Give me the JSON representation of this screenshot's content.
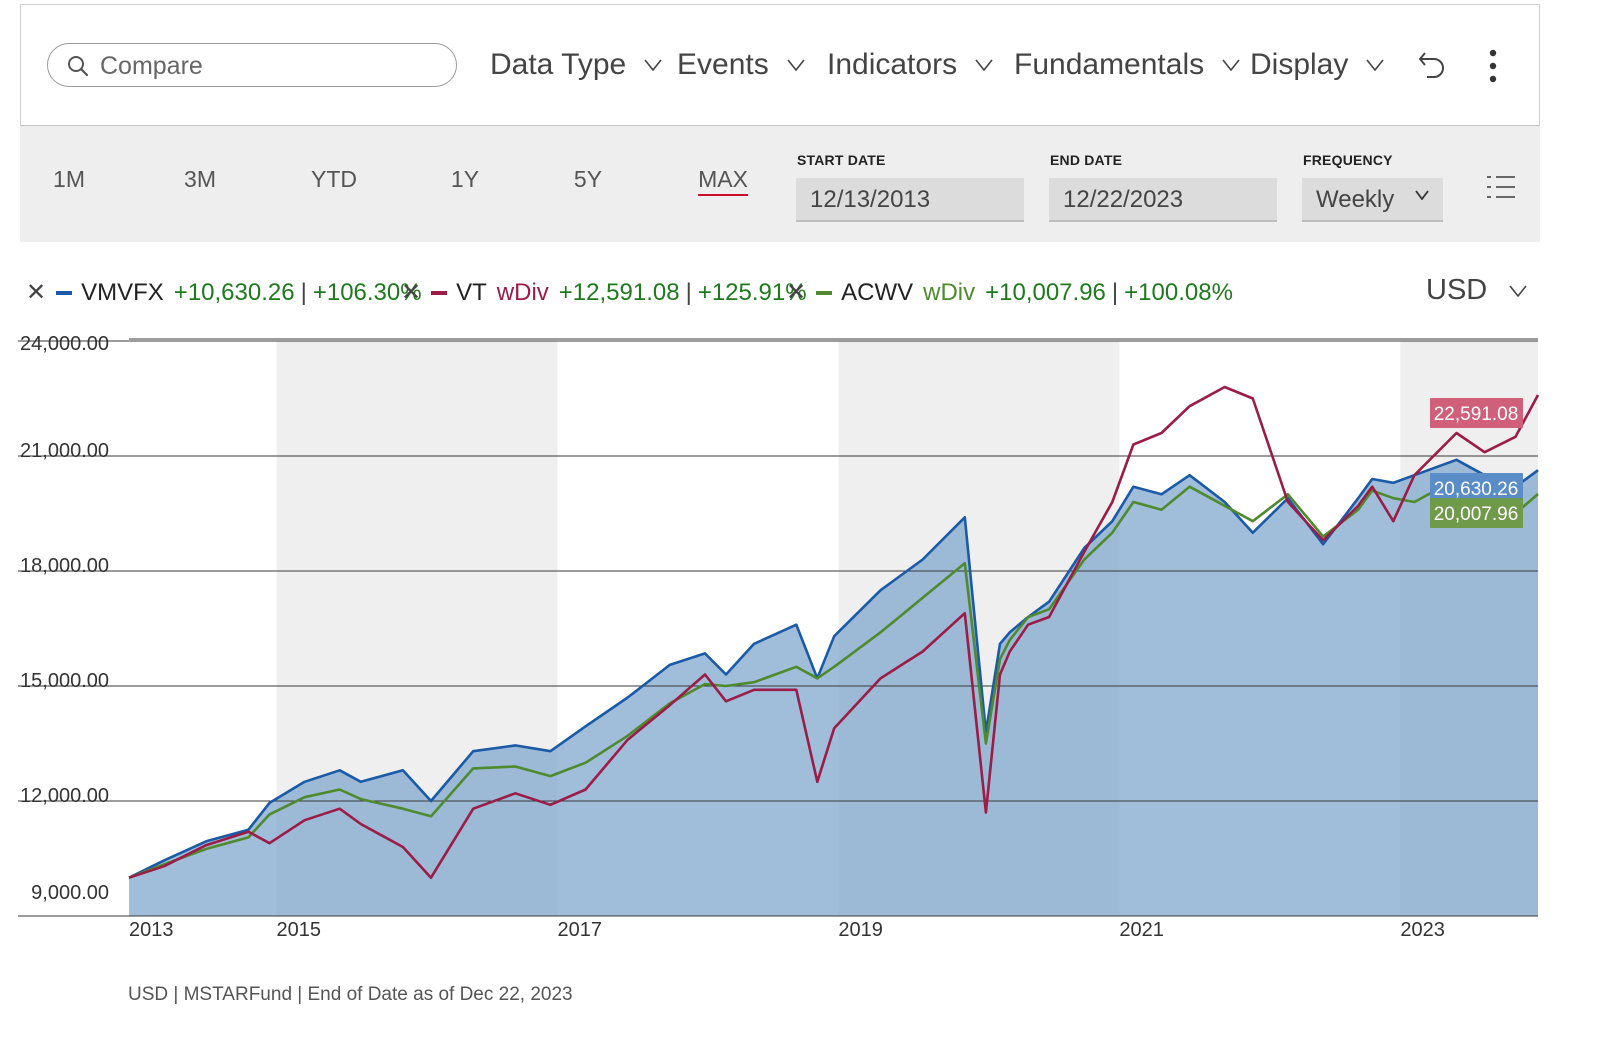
{
  "toolbar": {
    "search_placeholder": "Compare",
    "menus": [
      "Data Type",
      "Events",
      "Indicators",
      "Fundamentals",
      "Display"
    ]
  },
  "range": {
    "buttons": [
      "1M",
      "3M",
      "YTD",
      "1Y",
      "5Y",
      "MAX"
    ],
    "active": "MAX",
    "start_label": "START DATE",
    "start_value": "12/13/2013",
    "end_label": "END DATE",
    "end_value": "12/22/2023",
    "frequency_label": "FREQUENCY",
    "frequency_value": "Weekly"
  },
  "legend": [
    {
      "ticker": "VMVFX",
      "wdiv": "",
      "gain": "+10,630.26",
      "pct": "+106.30%",
      "color": "#1a5aa6"
    },
    {
      "ticker": "VT",
      "wdiv": "wDiv",
      "gain": "+12,591.08",
      "pct": "+125.91%",
      "color": "#9b1c47"
    },
    {
      "ticker": "ACWV",
      "wdiv": "wDiv",
      "gain": "+10,007.96",
      "pct": "+100.08%",
      "color": "#4f8a2e"
    }
  ],
  "currency": "USD",
  "footnote": "USD | MSTARFund | End of Date as of Dec 22, 2023",
  "chart_data": {
    "type": "line",
    "title": "",
    "xlabel": "",
    "ylabel": "",
    "ylim": [
      9000,
      24000
    ],
    "xlim": [
      2013.95,
      2023.98
    ],
    "y_ticks": [
      {
        "value": 9000,
        "label": "9,000.00"
      },
      {
        "value": 12000,
        "label": "12,000.00"
      },
      {
        "value": 15000,
        "label": "15,000.00"
      },
      {
        "value": 18000,
        "label": "18,000.00"
      },
      {
        "value": 21000,
        "label": "21,000.00"
      },
      {
        "value": 24000,
        "label": "24,000.00"
      }
    ],
    "x_ticks": [
      {
        "value": 2013.95,
        "label": "2013"
      },
      {
        "value": 2015.0,
        "label": "2015"
      },
      {
        "value": 2017.0,
        "label": "2017"
      },
      {
        "value": 2019.0,
        "label": "2019"
      },
      {
        "value": 2021.0,
        "label": "2021"
      },
      {
        "value": 2023.0,
        "label": "2023"
      }
    ],
    "shaded_years": [
      [
        2015.0,
        2017.0
      ],
      [
        2019.0,
        2021.0
      ],
      [
        2023.0,
        2023.98
      ]
    ],
    "series": [
      {
        "name": "VMVFX",
        "color": "#1a5aa6",
        "area_fill": true,
        "end_label": "20,630.26",
        "x": [
          2013.95,
          2014.2,
          2014.5,
          2014.8,
          2014.95,
          2015.2,
          2015.45,
          2015.6,
          2015.9,
          2016.1,
          2016.4,
          2016.7,
          2016.95,
          2017.2,
          2017.5,
          2017.8,
          2018.05,
          2018.2,
          2018.4,
          2018.7,
          2018.85,
          2018.97,
          2019.3,
          2019.6,
          2019.9,
          2020.05,
          2020.15,
          2020.22,
          2020.35,
          2020.5,
          2020.75,
          2020.95,
          2021.1,
          2021.3,
          2021.5,
          2021.75,
          2021.95,
          2022.2,
          2022.45,
          2022.7,
          2022.8,
          2022.95,
          2023.1,
          2023.4,
          2023.6,
          2023.82,
          2023.98
        ],
        "y": [
          10000,
          10450,
          10950,
          11250,
          11950,
          12500,
          12800,
          12500,
          12800,
          12000,
          13300,
          13450,
          13300,
          13950,
          14700,
          15550,
          15850,
          15300,
          16100,
          16600,
          15200,
          16300,
          17500,
          18300,
          19400,
          13800,
          16100,
          16400,
          16800,
          17200,
          18600,
          19300,
          20200,
          20000,
          20500,
          19800,
          19000,
          19900,
          18700,
          19900,
          20400,
          20300,
          20500,
          20900,
          20500,
          20200,
          20630
        ]
      },
      {
        "name": "ACWV",
        "color": "#4f8a2e",
        "area_fill": false,
        "end_label": "20,007.96",
        "x": [
          2013.95,
          2014.2,
          2014.5,
          2014.8,
          2014.95,
          2015.2,
          2015.45,
          2015.6,
          2015.9,
          2016.1,
          2016.4,
          2016.7,
          2016.95,
          2017.2,
          2017.5,
          2017.8,
          2018.05,
          2018.2,
          2018.4,
          2018.7,
          2018.85,
          2018.97,
          2019.3,
          2019.6,
          2019.9,
          2020.05,
          2020.15,
          2020.22,
          2020.35,
          2020.5,
          2020.75,
          2020.95,
          2021.1,
          2021.3,
          2021.5,
          2021.75,
          2021.95,
          2022.2,
          2022.45,
          2022.7,
          2022.8,
          2022.95,
          2023.1,
          2023.4,
          2023.6,
          2023.82,
          2023.98
        ],
        "y": [
          10000,
          10350,
          10750,
          11050,
          11650,
          12100,
          12300,
          12050,
          11800,
          11600,
          12850,
          12900,
          12650,
          13000,
          13700,
          14550,
          15050,
          15000,
          15100,
          15500,
          15200,
          15500,
          16400,
          17300,
          18200,
          13500,
          15700,
          16200,
          16800,
          17000,
          18300,
          19000,
          19800,
          19600,
          20200,
          19700,
          19300,
          20000,
          18900,
          19600,
          20100,
          19900,
          19800,
          20400,
          20200,
          19500,
          20008
        ]
      },
      {
        "name": "VT",
        "color": "#9b1c47",
        "area_fill": false,
        "end_label": "22,591.08",
        "x": [
          2013.95,
          2014.2,
          2014.5,
          2014.8,
          2014.95,
          2015.2,
          2015.45,
          2015.6,
          2015.9,
          2016.1,
          2016.4,
          2016.7,
          2016.95,
          2017.2,
          2017.5,
          2017.8,
          2018.05,
          2018.2,
          2018.4,
          2018.7,
          2018.85,
          2018.97,
          2019.3,
          2019.6,
          2019.9,
          2020.05,
          2020.15,
          2020.22,
          2020.35,
          2020.5,
          2020.75,
          2020.95,
          2021.1,
          2021.3,
          2021.5,
          2021.75,
          2021.95,
          2022.2,
          2022.45,
          2022.7,
          2022.8,
          2022.95,
          2023.1,
          2023.4,
          2023.6,
          2023.82,
          2023.98
        ],
        "y": [
          10000,
          10300,
          10850,
          11200,
          10900,
          11500,
          11800,
          11400,
          10800,
          10000,
          11800,
          12200,
          11900,
          12300,
          13600,
          14500,
          15300,
          14600,
          14900,
          14900,
          12500,
          13900,
          15200,
          15900,
          16900,
          11700,
          15300,
          15900,
          16600,
          16800,
          18500,
          19800,
          21300,
          21600,
          22300,
          22800,
          22500,
          19800,
          18800,
          19700,
          20200,
          19300,
          20500,
          21600,
          21100,
          21500,
          22591
        ]
      }
    ]
  }
}
